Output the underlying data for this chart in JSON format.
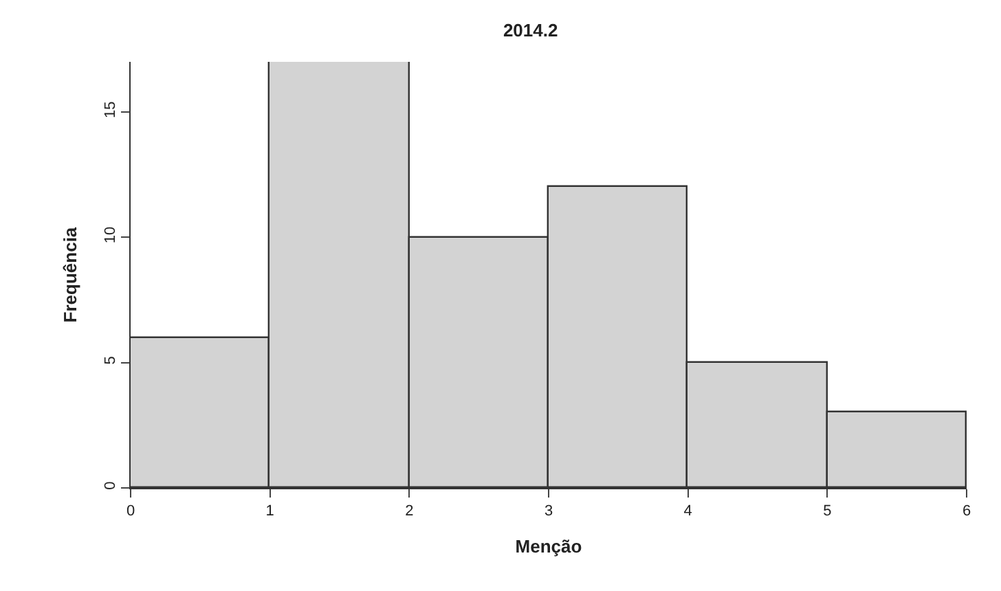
{
  "chart_data": {
    "type": "histogram",
    "title": "2014.2",
    "xlabel": "Menção",
    "ylabel": "Frequência",
    "bins": [
      0,
      1,
      2,
      3,
      4,
      5,
      6
    ],
    "values": [
      6,
      17,
      10,
      12,
      5,
      3
    ],
    "color": "#d3d3d3",
    "xlim": [
      0,
      6
    ],
    "xticks": [
      0,
      1,
      2,
      3,
      4,
      5,
      6
    ],
    "ylim": [
      0,
      17
    ],
    "yticks": [
      0,
      5,
      10,
      15
    ]
  }
}
